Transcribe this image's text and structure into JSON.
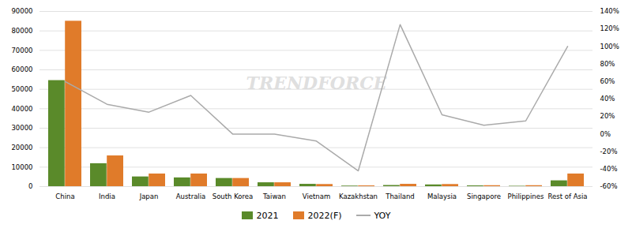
{
  "chart_data": {
    "type": "bar",
    "categories": [
      "China",
      "India",
      "Japan",
      "Australia",
      "South Korea",
      "Taiwan",
      "Vietnam",
      "Kazakhstan",
      "Thailand",
      "Malaysia",
      "Singapore",
      "Philippines",
      "Rest of Asia"
    ],
    "series": [
      {
        "name": "2021",
        "type": "bar",
        "color": "#5a8a2a",
        "values": [
          54500,
          11800,
          5000,
          4500,
          4200,
          2000,
          1200,
          300,
          600,
          900,
          400,
          200,
          3000
        ]
      },
      {
        "name": "2022(F)",
        "type": "bar",
        "color": "#e07b2a",
        "values": [
          85000,
          15800,
          6500,
          6500,
          4200,
          2000,
          1100,
          400,
          1200,
          1100,
          500,
          500,
          6500
        ]
      },
      {
        "name": "YOY",
        "type": "line",
        "axis": "y2",
        "color": "#aaaaaa",
        "values": [
          0.6,
          0.34,
          0.25,
          0.44,
          0.0,
          0.0,
          -0.08,
          -0.42,
          1.25,
          0.22,
          0.1,
          0.15,
          1.0
        ]
      }
    ],
    "ylim": [
      0,
      90000
    ],
    "yticks": [
      0,
      10000,
      20000,
      30000,
      40000,
      50000,
      60000,
      70000,
      80000,
      90000
    ],
    "y2lim": [
      -0.6,
      1.4
    ],
    "y2ticks": [
      {
        "value": -0.6,
        "label": "-60%"
      },
      {
        "value": -0.4,
        "label": "-40%"
      },
      {
        "value": -0.2,
        "label": "-20%"
      },
      {
        "value": 0,
        "label": "0%"
      },
      {
        "value": 0.2,
        "label": "20%"
      },
      {
        "value": 0.4,
        "label": "40%"
      },
      {
        "value": 0.6,
        "label": "60%"
      },
      {
        "value": 0.8,
        "label": "80%"
      },
      {
        "value": 1.0,
        "label": "100%"
      },
      {
        "value": 1.2,
        "label": "120%"
      },
      {
        "value": 1.4,
        "label": "140%"
      }
    ],
    "grid": true,
    "legend": "bottom",
    "annotations": [
      "TRENDFORCE"
    ]
  }
}
